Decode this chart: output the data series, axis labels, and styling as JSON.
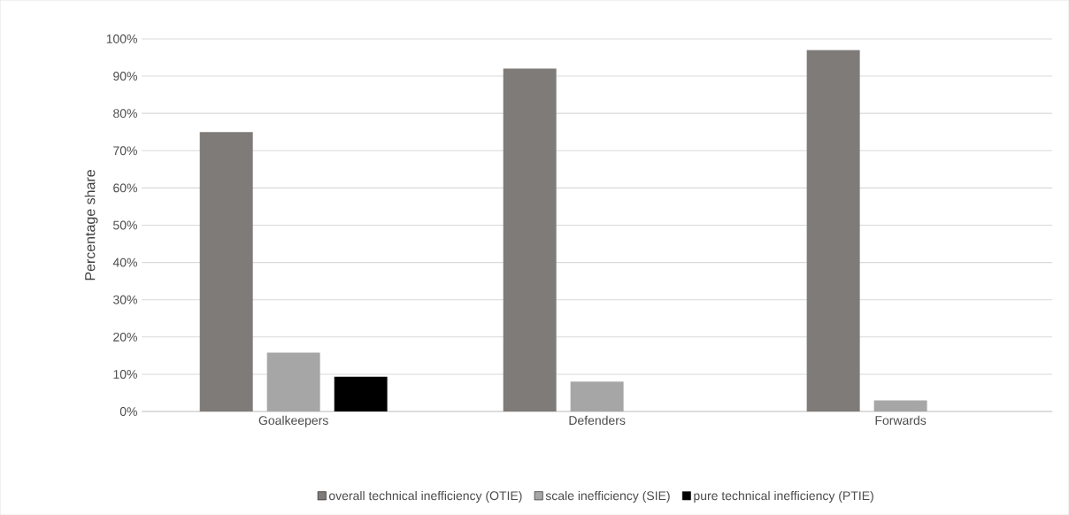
{
  "chart_data": {
    "type": "bar",
    "ylabel": "Percentage share",
    "categories": [
      "Goalkeepers",
      "Defenders",
      "Forwards"
    ],
    "series": [
      {
        "name": "overall technical inefficiency (OTIE)",
        "color": "#7f7b79",
        "values": [
          75,
          92,
          97
        ]
      },
      {
        "name": "scale inefficiency (SIE)",
        "color": "#a6a6a6",
        "values": [
          15.8,
          8,
          3
        ]
      },
      {
        "name": "pure technical inefficiency (PTIE)",
        "color": "#000000",
        "values": [
          9.4,
          0,
          0
        ]
      }
    ],
    "ylim": [
      0,
      100
    ],
    "yticks": [
      {
        "value": 0,
        "label": "0%"
      },
      {
        "value": 10,
        "label": "10%"
      },
      {
        "value": 20,
        "label": "20%"
      },
      {
        "value": 30,
        "label": "30%"
      },
      {
        "value": 40,
        "label": "40%"
      },
      {
        "value": 50,
        "label": "50%"
      },
      {
        "value": 60,
        "label": "60%"
      },
      {
        "value": 70,
        "label": "70%"
      },
      {
        "value": 80,
        "label": "80%"
      },
      {
        "value": 90,
        "label": "90%"
      },
      {
        "value": 100,
        "label": "100%"
      }
    ],
    "grid": "y",
    "legend": "bottom"
  }
}
